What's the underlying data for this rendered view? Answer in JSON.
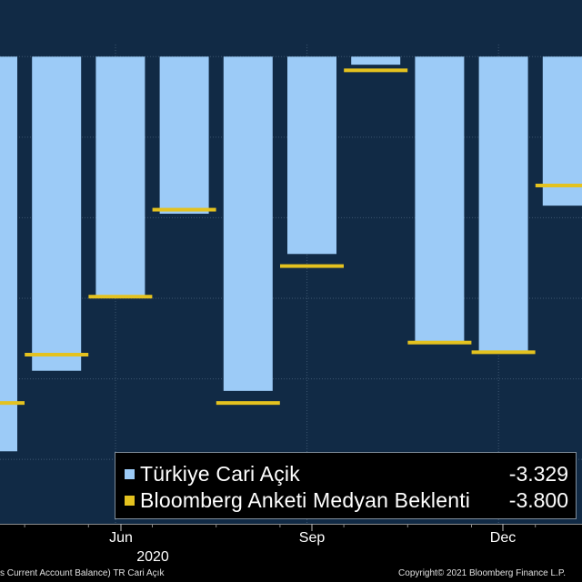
{
  "chart_data": {
    "type": "bar",
    "colors": {
      "bar": "#9ccbf7",
      "marker": "#e4c21f",
      "plot_bg": "#112a45",
      "grid": "#3d5670",
      "page_bg": "#000000"
    },
    "bars": [
      {
        "actual": -4.9,
        "expected": -4.3
      },
      {
        "actual": -3.9,
        "expected": -3.7
      },
      {
        "actual": -3.0,
        "expected": -2.98
      },
      {
        "actual": -1.95,
        "expected": -1.9
      },
      {
        "actual": -4.15,
        "expected": -4.3
      },
      {
        "actual": -2.45,
        "expected": -2.6
      },
      {
        "actual": -0.1,
        "expected": -0.17
      },
      {
        "actual": -3.55,
        "expected": -3.55
      },
      {
        "actual": -3.65,
        "expected": -3.67
      },
      {
        "actual": -1.85,
        "expected": -1.6
      }
    ],
    "ylim": [
      -5.8,
      0.15
    ],
    "x_ticks": [
      {
        "label": "Jun",
        "index": 2
      },
      {
        "label": "Sep",
        "index": 5
      },
      {
        "label": "Dec",
        "index": 8
      }
    ],
    "year_label": "2020",
    "legend": [
      {
        "name": "Türkiye Cari Açik",
        "value": "-3.329",
        "swatch": "bar"
      },
      {
        "name": "Bloomberg Anketi Medyan Beklenti",
        "value": "-3.800",
        "swatch": "marker"
      }
    ]
  },
  "footer": {
    "source": "s Current Account Balance) TR Cari Açık",
    "copyright": "Copyright© 2021 Bloomberg Finance L.P."
  }
}
